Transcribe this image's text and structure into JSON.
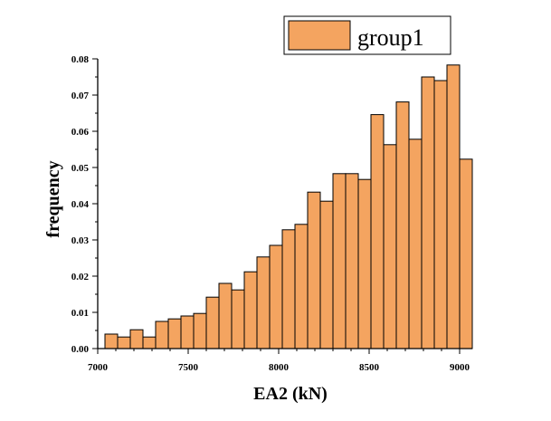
{
  "chart_data": {
    "type": "bar",
    "subtype": "histogram",
    "xlabel": "EA2 (kN)",
    "ylabel": "frequency",
    "xlim": [
      7000,
      9070
    ],
    "ylim": [
      0,
      0.08
    ],
    "x_ticks": [
      "7000",
      "7500",
      "8000",
      "8500",
      "9000"
    ],
    "y_ticks": [
      "0.00",
      "0.01",
      "0.02",
      "0.03",
      "0.04",
      "0.05",
      "0.06",
      "0.07",
      "0.08"
    ],
    "bin_width": 70,
    "bin_starts": [
      7040,
      7110,
      7180,
      7250,
      7320,
      7390,
      7460,
      7530,
      7600,
      7670,
      7740,
      7810,
      7880,
      7950,
      8020,
      8090,
      8160,
      8230,
      8300,
      8370,
      8440,
      8510,
      8580,
      8650,
      8720,
      8790,
      8860,
      8930,
      9000
    ],
    "series": [
      {
        "name": "group1",
        "color": "#f4a460",
        "values": [
          0.004,
          0.0032,
          0.0052,
          0.0032,
          0.0075,
          0.0082,
          0.009,
          0.0097,
          0.0142,
          0.018,
          0.0162,
          0.0212,
          0.0253,
          0.0285,
          0.0328,
          0.0343,
          0.0432,
          0.0407,
          0.0483,
          0.0483,
          0.0467,
          0.0646,
          0.0563,
          0.0681,
          0.0578,
          0.075,
          0.074,
          0.0783,
          0.0523
        ]
      }
    ],
    "legend": {
      "position": "top-right",
      "entries": [
        "group1"
      ]
    },
    "grid": false
  }
}
